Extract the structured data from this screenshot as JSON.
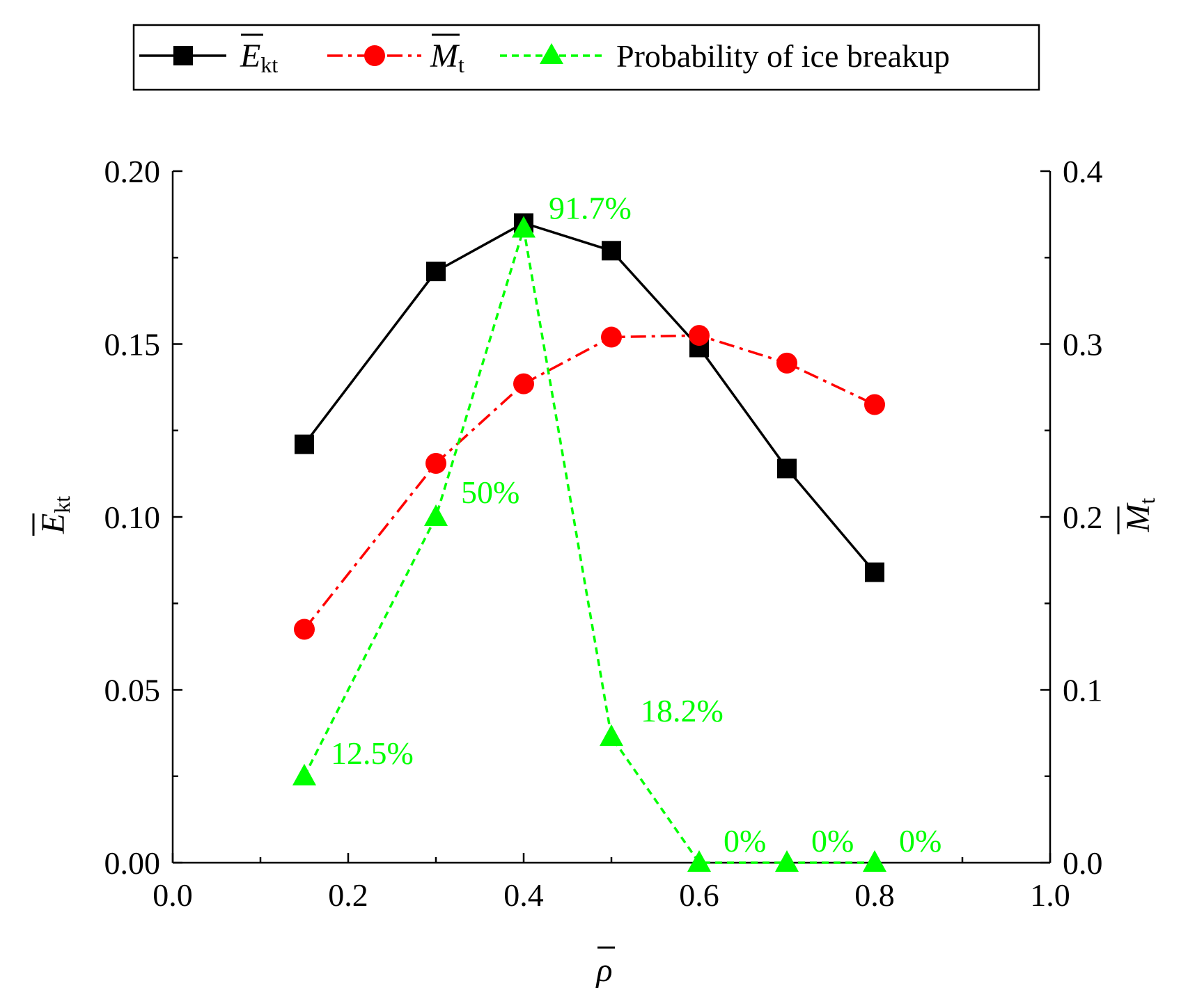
{
  "chart_data": {
    "type": "line",
    "x_axis": {
      "symbol": "ρ",
      "range": [
        0.0,
        1.0
      ],
      "ticks": [
        "0.0",
        "0.2",
        "0.4",
        "0.6",
        "0.8",
        "1.0"
      ]
    },
    "y_left_axis": {
      "symbol": "E",
      "subscript": "kt",
      "range": [
        0.0,
        0.2
      ],
      "ticks": [
        "0.00",
        "0.05",
        "0.10",
        "0.15",
        "0.20"
      ]
    },
    "y_right_axis": {
      "symbol": "M",
      "subscript": "t",
      "range": [
        0.0,
        0.4
      ],
      "ticks": [
        "0.0",
        "0.1",
        "0.2",
        "0.3",
        "0.4"
      ]
    },
    "legend": {
      "position": "top",
      "entries": [
        {
          "symbol": "E",
          "subscript": "kt"
        },
        {
          "symbol": "M",
          "subscript": "t"
        },
        {
          "text": "Probability of ice breakup"
        }
      ]
    },
    "series": [
      {
        "name": "E_kt",
        "axis": "left",
        "color": "#000000",
        "marker": "square",
        "line": "solid",
        "x": [
          0.15,
          0.3,
          0.4,
          0.5,
          0.6,
          0.7,
          0.8
        ],
        "values": [
          0.121,
          0.171,
          0.185,
          0.177,
          0.149,
          0.114,
          0.084
        ]
      },
      {
        "name": "M_t",
        "axis": "right",
        "color": "#ff0000",
        "marker": "circle",
        "line": "dashdot",
        "x": [
          0.15,
          0.3,
          0.4,
          0.5,
          0.6,
          0.7,
          0.8
        ],
        "values": [
          0.135,
          0.231,
          0.277,
          0.304,
          0.305,
          0.289,
          0.265
        ]
      },
      {
        "name": "Probability of ice breakup",
        "axis": "left",
        "color": "#00ff00",
        "marker": "triangle",
        "line": "dashed",
        "x": [
          0.15,
          0.3,
          0.4,
          0.5,
          0.6,
          0.7,
          0.8
        ],
        "values": [
          0.025,
          0.1,
          0.1834,
          0.0364,
          0.0,
          0.0,
          0.0
        ],
        "labels": [
          "12.5%",
          "50%",
          "91.7%",
          "18.2%",
          "0%",
          "0%",
          "0%"
        ]
      }
    ]
  }
}
